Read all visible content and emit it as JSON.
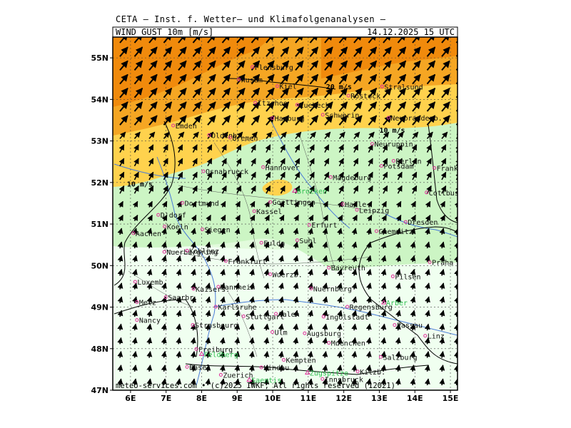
{
  "header": {
    "source": "CETA — Inst. f. Wetter— und Klimafolgenanalysen —",
    "parameter": "WIND_GUST_10m_[m/s]",
    "valid_time": "14.12.2025  15 UTC"
  },
  "footer": "meteo-services.com • (c)2025 IWKF, All rights reserved (12021)",
  "axes": {
    "lat_labels": [
      "55N",
      "54N",
      "53N",
      "52N",
      "51N",
      "50N",
      "49N",
      "48N",
      "47N"
    ],
    "lon_labels": [
      "6E",
      "7E",
      "8E",
      "9E",
      "10E",
      "11E",
      "12E",
      "13E",
      "14E",
      "15E"
    ],
    "lat_range": [
      47,
      55.5
    ],
    "lon_range": [
      5.5,
      15.2
    ]
  },
  "contour_labels": [
    {
      "text": "20 m/s",
      "lon": 11.5,
      "lat": 54.25
    },
    {
      "text": "10 m/s",
      "lon": 13.0,
      "lat": 53.2
    },
    {
      "text": "10 m/s",
      "lon": 5.9,
      "lat": 51.9
    }
  ],
  "colors": {
    "orange": "#f5a623",
    "dark_orange": "#f08a0c",
    "yellow": "#ffd24d",
    "light_yellow": "#fff27a",
    "green": "#ccf5c4",
    "light_green": "#e2fbdc",
    "pale_green": "#f0fff0",
    "border": "#000000",
    "river": "#4a7bd8",
    "city_dot": "#e0309a",
    "mountain": "#2fbf50"
  },
  "cities": [
    {
      "name": "Kiel",
      "lon": 10.13,
      "lat": 54.32
    },
    {
      "name": "Husum",
      "lon": 9.05,
      "lat": 54.48
    },
    {
      "name": "Flensburg",
      "lon": 9.43,
      "lat": 54.78
    },
    {
      "name": "Stralsund",
      "lon": 13.08,
      "lat": 54.31
    },
    {
      "name": "Rostock",
      "lon": 12.13,
      "lat": 54.09
    },
    {
      "name": "Itzehoe",
      "lon": 9.51,
      "lat": 53.92
    },
    {
      "name": "Luebeck",
      "lon": 10.69,
      "lat": 53.87
    },
    {
      "name": "Schwerin",
      "lon": 11.41,
      "lat": 53.63
    },
    {
      "name": "Neubrandenb.",
      "lon": 13.26,
      "lat": 53.56
    },
    {
      "name": "Hamburg",
      "lon": 9.99,
      "lat": 53.55
    },
    {
      "name": "Emden",
      "lon": 7.2,
      "lat": 53.37
    },
    {
      "name": "Oldenb.",
      "lon": 8.21,
      "lat": 53.14
    },
    {
      "name": "Bremen",
      "lon": 8.8,
      "lat": 53.08
    },
    {
      "name": "Neuruppin",
      "lon": 12.8,
      "lat": 52.93
    },
    {
      "name": "Berlin",
      "lon": 13.4,
      "lat": 52.52
    },
    {
      "name": "Potsdam",
      "lon": 13.06,
      "lat": 52.4
    },
    {
      "name": "Frankfurt/O.",
      "lon": 14.55,
      "lat": 52.35
    },
    {
      "name": "Hannover",
      "lon": 9.73,
      "lat": 52.37
    },
    {
      "name": "Osnabrueck",
      "lon": 8.05,
      "lat": 52.27
    },
    {
      "name": "Magdeburg",
      "lon": 11.63,
      "lat": 52.13
    },
    {
      "name": "Brocken",
      "lon": 10.62,
      "lat": 51.8
    },
    {
      "name": "Cottbus",
      "lon": 14.33,
      "lat": 51.76
    },
    {
      "name": "Dortmund",
      "lon": 7.46,
      "lat": 51.51
    },
    {
      "name": "Goettingen",
      "lon": 9.93,
      "lat": 51.53
    },
    {
      "name": "Halle",
      "lon": 11.97,
      "lat": 51.48
    },
    {
      "name": "Kassel",
      "lon": 9.48,
      "lat": 51.31
    },
    {
      "name": "Leipzig",
      "lon": 12.37,
      "lat": 51.34
    },
    {
      "name": "D'dorf",
      "lon": 6.78,
      "lat": 51.22
    },
    {
      "name": "Dresden",
      "lon": 13.74,
      "lat": 51.05
    },
    {
      "name": "Koeln",
      "lon": 6.96,
      "lat": 50.94
    },
    {
      "name": "Erfurt",
      "lon": 11.03,
      "lat": 50.98
    },
    {
      "name": "Siegen",
      "lon": 8.02,
      "lat": 50.87
    },
    {
      "name": "Chemnitz",
      "lon": 12.92,
      "lat": 50.83
    },
    {
      "name": "Aachen",
      "lon": 6.08,
      "lat": 50.78
    },
    {
      "name": "Fulda",
      "lon": 9.68,
      "lat": 50.55
    },
    {
      "name": "Suhl",
      "lon": 10.69,
      "lat": 50.61
    },
    {
      "name": "Nuerburgring",
      "lon": 6.95,
      "lat": 50.33
    },
    {
      "name": "Koblenz",
      "lon": 7.59,
      "lat": 50.36
    },
    {
      "name": "Frankfurt",
      "lon": 8.68,
      "lat": 50.11
    },
    {
      "name": "Praha",
      "lon": 14.42,
      "lat": 50.08
    },
    {
      "name": "Bayreuth",
      "lon": 11.58,
      "lat": 49.95
    },
    {
      "name": "Wuerzb.",
      "lon": 9.93,
      "lat": 49.79
    },
    {
      "name": "Pilsen",
      "lon": 13.38,
      "lat": 49.74
    },
    {
      "name": "Luxemb.",
      "lon": 6.13,
      "lat": 49.61
    },
    {
      "name": "Mannheim",
      "lon": 8.47,
      "lat": 49.49
    },
    {
      "name": "Nuernberg",
      "lon": 11.08,
      "lat": 49.45
    },
    {
      "name": "Kaisers.",
      "lon": 7.77,
      "lat": 49.44
    },
    {
      "name": "Saarbr.",
      "lon": 6.99,
      "lat": 49.24
    },
    {
      "name": "Metz",
      "lon": 6.18,
      "lat": 49.12
    },
    {
      "name": "Karlsruhe",
      "lon": 8.4,
      "lat": 49.01
    },
    {
      "name": "Regensburg",
      "lon": 12.1,
      "lat": 49.01
    },
    {
      "name": "Arber",
      "lon": 13.13,
      "lat": 49.11
    },
    {
      "name": "Aalen",
      "lon": 10.09,
      "lat": 48.84
    },
    {
      "name": "Ingolstadt",
      "lon": 11.43,
      "lat": 48.77
    },
    {
      "name": "Nancy",
      "lon": 6.18,
      "lat": 48.69
    },
    {
      "name": "Stuttgart",
      "lon": 9.18,
      "lat": 48.78
    },
    {
      "name": "Strasbourg",
      "lon": 7.75,
      "lat": 48.57
    },
    {
      "name": "Passau",
      "lon": 13.43,
      "lat": 48.57
    },
    {
      "name": "Ulm",
      "lon": 9.99,
      "lat": 48.4
    },
    {
      "name": "Augsburg",
      "lon": 10.9,
      "lat": 48.37
    },
    {
      "name": "Linz",
      "lon": 14.29,
      "lat": 48.31
    },
    {
      "name": "Muenchen",
      "lon": 11.58,
      "lat": 48.14
    },
    {
      "name": "Freiburg",
      "lon": 7.85,
      "lat": 47.99
    },
    {
      "name": "Feldberg",
      "lon": 8.0,
      "lat": 47.87
    },
    {
      "name": "Salzburg",
      "lon": 13.04,
      "lat": 47.8
    },
    {
      "name": "Kempten",
      "lon": 10.31,
      "lat": 47.73
    },
    {
      "name": "Basel",
      "lon": 7.59,
      "lat": 47.56
    },
    {
      "name": "Zuerich",
      "lon": 8.54,
      "lat": 47.37
    },
    {
      "name": "Lindau",
      "lon": 9.68,
      "lat": 47.55
    },
    {
      "name": "Kitzb.",
      "lon": 12.39,
      "lat": 47.45
    },
    {
      "name": "Zugspitze",
      "lon": 10.98,
      "lat": 47.42
    },
    {
      "name": "Innsbruck",
      "lon": 11.4,
      "lat": 47.27
    },
    {
      "name": "Saentis",
      "lon": 9.34,
      "lat": 47.25
    }
  ]
}
